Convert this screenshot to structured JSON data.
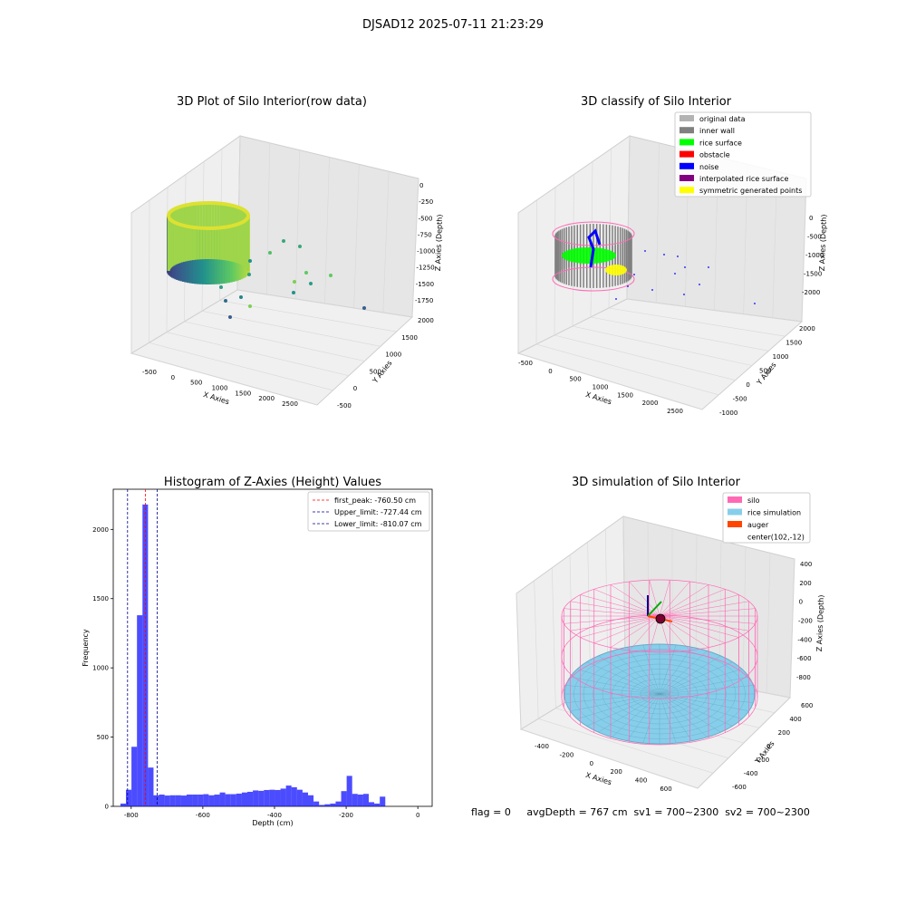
{
  "suptitle": "DJSAD12 2025-07-11 21:23:29",
  "footer": "flag = 0     avgDepth = 767 cm  sv1 = 700~2300  sv2 = 700~2300",
  "colors": {
    "original_data": "#b3b3b3",
    "inner_wall": "#808080",
    "rice_surface": "#00ff00",
    "obstacle": "#ff0000",
    "noise": "#0000ff",
    "interpolated_rice_surface": "#800080",
    "symmetric_generated_points": "#ffff00",
    "silo": "#ff69b4",
    "rice_simulation": "#87ceeb",
    "auger": "#ff4500",
    "hist_bar": "#0000ff",
    "first_peak_line": "#ff0000",
    "limit_line": "#00008b"
  },
  "chart_data": [
    {
      "type": "scatter3d",
      "title": "3D Plot of Silo Interior(row data)",
      "xlabel": "X Axies",
      "ylabel": "Y Axies",
      "zlabel": "Z Axies (Depth)",
      "x_ticks": [
        "-500",
        "0",
        "500",
        "1000",
        "1500",
        "2000",
        "2500"
      ],
      "y_ticks": [
        "-500",
        "0",
        "500",
        "1000",
        "1500",
        "2000"
      ],
      "z_ticks": [
        "0",
        "-250",
        "-500",
        "-750",
        "-1000",
        "-1250",
        "-1500",
        "-1750"
      ],
      "colormap": "viridis",
      "content": "cylindrical wall point cloud near x≈0 with scattered outliers"
    },
    {
      "type": "scatter3d",
      "title": "3D classify of Silo Interior",
      "xlabel": "X Axies",
      "ylabel": "Y Axies",
      "zlabel": "Z Axies (Depth)",
      "x_ticks": [
        "-500",
        "0",
        "500",
        "1000",
        "1500",
        "2000",
        "2500"
      ],
      "y_ticks": [
        "-1000",
        "-500",
        "0",
        "500",
        "1000",
        "1500",
        "2000"
      ],
      "z_ticks": [
        "0",
        "-500",
        "-1000",
        "-1500",
        "-2000"
      ],
      "legend": [
        "original data",
        "inner wall",
        "rice surface",
        "obstacle",
        "noise",
        "interpolated rice surface",
        "symmetric generated points"
      ],
      "legend_position": "top-right"
    },
    {
      "type": "bar",
      "title": "Histogram of Z-Axies (Height) Values",
      "xlabel": "Depth (cm)",
      "ylabel": "Frequency",
      "xlim": [
        -850,
        40
      ],
      "ylim": [
        0,
        2290
      ],
      "x_ticks": [
        -800,
        -600,
        -400,
        -200,
        0
      ],
      "y_ticks": [
        0,
        500,
        1000,
        1500,
        2000
      ],
      "bin_start": -830,
      "bin_width": 15.4,
      "values": [
        20,
        120,
        430,
        1380,
        2180,
        280,
        80,
        85,
        78,
        80,
        80,
        78,
        85,
        85,
        85,
        88,
        80,
        85,
        100,
        88,
        88,
        92,
        100,
        105,
        115,
        112,
        118,
        120,
        118,
        128,
        150,
        138,
        120,
        100,
        80,
        35,
        10,
        15,
        20,
        35,
        110,
        220,
        90,
        85,
        90,
        30,
        20,
        70
      ],
      "vlines": [
        {
          "label": "first_peak: -760.50 cm",
          "x": -760.5,
          "color_key": "first_peak_line"
        },
        {
          "label": "Upper_limit: -727.44 cm",
          "x": -727.44,
          "color_key": "limit_line"
        },
        {
          "label": "Lower_limit: -810.07 cm",
          "x": -810.07,
          "color_key": "limit_line"
        }
      ],
      "legend_position": "top-right"
    },
    {
      "type": "surface3d",
      "title": "3D simulation of Silo Interior",
      "xlabel": "X Axies",
      "ylabel": "Y Axies",
      "zlabel": "Z Axies (Depth)",
      "x_ticks": [
        "-400",
        "-200",
        "0",
        "200",
        "400",
        "600"
      ],
      "y_ticks": [
        "-600",
        "-400",
        "-200",
        "0",
        "200",
        "400",
        "600"
      ],
      "z_ticks": [
        "400",
        "200",
        "0",
        "-200",
        "-400",
        "-600",
        "-800"
      ],
      "legend": [
        "silo",
        "rice simulation",
        "auger",
        "center(102,-12)"
      ],
      "legend_position": "top-right"
    }
  ]
}
